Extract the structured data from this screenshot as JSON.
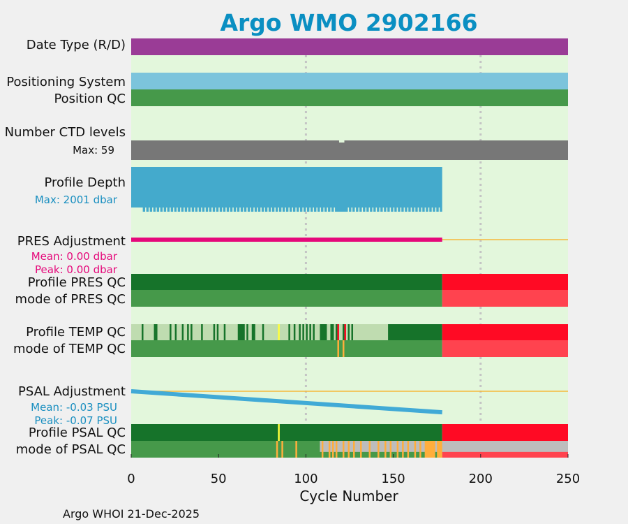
{
  "title": "Argo WMO 2902166",
  "footer": "Argo WHOI 21-Dec-2025",
  "colors": {
    "title": "#0a8fc2",
    "plot_bg": "#e3f7dc",
    "date_type": "#9a3c96",
    "positioning": "#7cc4dc",
    "qc_good": "#46994a",
    "qc_dark_good": "#16732a",
    "qc_light_good": "#bfdcb0",
    "qc_bad": "#ff0a24",
    "qc_bad_light": "#ff434f",
    "qc_probably_bad": "#ffae3c",
    "qc_flag_yellow": "#ffff3c",
    "qc_no_data": "#bdbdbd",
    "ctd": "#777777",
    "depth": "#44aacc",
    "pres_adj": "#e5087a",
    "psal_adj": "#41aad6",
    "zero_line": "#f6b93b",
    "mean_peak_pres": "#e5087a",
    "mean_peak_psal": "#1a8fc0"
  },
  "chart_data": {
    "type": "heatmap",
    "xlabel": "Cycle Number",
    "xlim": [
      0,
      250
    ],
    "xticks": [
      "0",
      "50",
      "100",
      "150",
      "200",
      "250"
    ],
    "xtick_values": [
      0,
      50,
      100,
      150,
      200,
      250
    ],
    "gridlines_at": [
      100,
      200
    ],
    "last_cycle": 178,
    "rows": {
      "date_type": {
        "label": "Date Type (R/D)",
        "segments": [
          {
            "from": 0,
            "to": 250,
            "color": "date_type"
          }
        ]
      },
      "positioning": {
        "label": "Positioning System",
        "segments": [
          {
            "from": 0,
            "to": 250,
            "color": "positioning"
          }
        ]
      },
      "position_qc": {
        "label": "Position QC",
        "segments": [
          {
            "from": 0,
            "to": 250,
            "color": "qc_good"
          }
        ]
      },
      "ctd_levels": {
        "label": "Number CTD levels",
        "max_label": "Max: 59",
        "max": 59,
        "typical": 57,
        "from": 0,
        "to": 250
      },
      "profile_depth": {
        "label": "Profile Depth",
        "max_label": "Max: 2001 dbar",
        "max_dbar": 2001,
        "from": 0,
        "to": 178,
        "typical_dbar": 2001,
        "dips": [
          {
            "cycle": 5,
            "dbar": 1800
          },
          {
            "cycle": 12,
            "dbar": 1840
          },
          {
            "cycle": 20,
            "dbar": 1830
          },
          {
            "cycle": 33,
            "dbar": 1840
          },
          {
            "cycle": 46,
            "dbar": 1840
          },
          {
            "cycle": 58,
            "dbar": 1840
          },
          {
            "cycle": 74,
            "dbar": 1700
          },
          {
            "cycle": 88,
            "dbar": 1840
          },
          {
            "cycle": 102,
            "dbar": 1840
          },
          {
            "cycle": 116,
            "dbar": 1840
          },
          {
            "cycle": 118,
            "dbar": 1600
          },
          {
            "cycle": 120,
            "dbar": 1500
          },
          {
            "cycle": 122,
            "dbar": 1650
          },
          {
            "cycle": 134,
            "dbar": 1840
          },
          {
            "cycle": 150,
            "dbar": 1840
          },
          {
            "cycle": 165,
            "dbar": 1840
          },
          {
            "cycle": 175,
            "dbar": 1840
          }
        ]
      },
      "pres_adjustment": {
        "label": "PRES Adjustment",
        "mean_label": "Mean: 0.00 dbar",
        "peak_label": "Peak: 0.00 dbar",
        "series": [
          {
            "cycle": 0,
            "value": 0.0
          },
          {
            "cycle": 178,
            "value": 0.0
          }
        ]
      },
      "profile_pres_qc": {
        "label": "Profile PRES QC",
        "segments": [
          {
            "from": 0,
            "to": 178,
            "color": "qc_dark_good"
          },
          {
            "from": 178,
            "to": 250,
            "color": "qc_bad"
          }
        ]
      },
      "mode_pres_qc": {
        "label": "mode of PRES QC",
        "segments": [
          {
            "from": 0,
            "to": 178,
            "color": "qc_good"
          },
          {
            "from": 178,
            "to": 250,
            "color": "qc_bad_light"
          }
        ]
      },
      "profile_temp_qc": {
        "label": "Profile TEMP QC",
        "segments": [
          {
            "from": 0,
            "to": 147,
            "color": "qc_light_good"
          },
          {
            "from": 147,
            "to": 178,
            "color": "qc_dark_good"
          },
          {
            "from": 178,
            "to": 250,
            "color": "qc_bad"
          }
        ],
        "marks": [
          {
            "at": 6,
            "color": "qc_dark_good"
          },
          {
            "at": 13,
            "color": "qc_dark_good"
          },
          {
            "at": 14,
            "color": "qc_dark_good"
          },
          {
            "at": 22,
            "color": "qc_dark_good"
          },
          {
            "at": 25,
            "color": "qc_dark_good"
          },
          {
            "at": 29,
            "color": "qc_dark_good"
          },
          {
            "at": 32,
            "color": "qc_dark_good"
          },
          {
            "at": 34,
            "color": "qc_dark_good"
          },
          {
            "at": 40,
            "color": "qc_dark_good"
          },
          {
            "at": 47,
            "color": "qc_dark_good"
          },
          {
            "at": 49,
            "color": "qc_dark_good"
          },
          {
            "at": 53,
            "color": "qc_dark_good"
          },
          {
            "at": 61,
            "color": "qc_dark_good",
            "w": 4
          },
          {
            "at": 66,
            "color": "qc_dark_good"
          },
          {
            "at": 69,
            "color": "qc_dark_good",
            "w": 2
          },
          {
            "at": 75,
            "color": "qc_dark_good"
          },
          {
            "at": 84,
            "color": "qc_flag_yellow"
          },
          {
            "at": 90,
            "color": "qc_dark_good"
          },
          {
            "at": 93,
            "color": "qc_dark_good"
          },
          {
            "at": 96,
            "color": "qc_dark_good"
          },
          {
            "at": 98,
            "color": "qc_dark_good"
          },
          {
            "at": 100,
            "color": "qc_dark_good"
          },
          {
            "at": 102,
            "color": "qc_dark_good"
          },
          {
            "at": 104,
            "color": "qc_dark_good"
          },
          {
            "at": 108,
            "color": "qc_dark_good",
            "w": 4
          },
          {
            "at": 114,
            "color": "qc_dark_good",
            "w": 2
          },
          {
            "at": 117,
            "color": "qc_dark_good"
          },
          {
            "at": 118,
            "color": "qc_bad"
          },
          {
            "at": 121,
            "color": "qc_dark_good"
          },
          {
            "at": 122,
            "color": "qc_bad"
          },
          {
            "at": 124,
            "color": "qc_dark_good"
          },
          {
            "at": 126,
            "color": "qc_dark_good"
          }
        ]
      },
      "mode_temp_qc": {
        "label": "mode of TEMP QC",
        "segments": [
          {
            "from": 0,
            "to": 178,
            "color": "qc_good"
          },
          {
            "from": 178,
            "to": 250,
            "color": "qc_bad_light"
          }
        ],
        "marks": [
          {
            "at": 118,
            "color": "qc_probably_bad"
          },
          {
            "at": 121,
            "color": "qc_probably_bad"
          }
        ]
      },
      "psal_adjustment": {
        "label": "PSAL Adjustment",
        "mean_label": "Mean: -0.03 PSU",
        "peak_label": "Peak: -0.07 PSU",
        "series": [
          {
            "cycle": 0,
            "value": 0.0
          },
          {
            "cycle": 178,
            "value": -0.07
          }
        ]
      },
      "profile_psal_qc": {
        "label": "Profile PSAL QC",
        "segments": [
          {
            "from": 0,
            "to": 178,
            "color": "qc_dark_good"
          },
          {
            "from": 178,
            "to": 250,
            "color": "qc_bad"
          }
        ],
        "marks": [
          {
            "at": 84,
            "color": "qc_flag_yellow"
          }
        ]
      },
      "mode_psal_qc": {
        "label": "mode of PSAL QC",
        "segments": [
          {
            "from": 0,
            "to": 178,
            "color": "qc_good"
          },
          {
            "from": 178,
            "to": 250,
            "color": "qc_bad_light"
          },
          {
            "from": 108,
            "to": 250,
            "color": "qc_no_data",
            "half": "top"
          }
        ],
        "marks": [
          {
            "at": 83,
            "color": "qc_probably_bad"
          },
          {
            "at": 86,
            "color": "qc_probably_bad"
          },
          {
            "at": 94,
            "color": "qc_probably_bad"
          },
          {
            "at": 109,
            "color": "qc_probably_bad"
          },
          {
            "at": 113,
            "color": "qc_probably_bad"
          },
          {
            "at": 115,
            "color": "qc_probably_bad"
          },
          {
            "at": 117,
            "color": "qc_probably_bad"
          },
          {
            "at": 121,
            "color": "qc_probably_bad"
          },
          {
            "at": 124,
            "color": "qc_probably_bad"
          },
          {
            "at": 127,
            "color": "qc_probably_bad"
          },
          {
            "at": 131,
            "color": "qc_probably_bad"
          },
          {
            "at": 136,
            "color": "qc_probably_bad"
          },
          {
            "at": 141,
            "color": "qc_probably_bad"
          },
          {
            "at": 145,
            "color": "qc_probably_bad"
          },
          {
            "at": 148,
            "color": "qc_probably_bad"
          },
          {
            "at": 152,
            "color": "qc_probably_bad"
          },
          {
            "at": 155,
            "color": "qc_probably_bad"
          },
          {
            "at": 158,
            "color": "qc_probably_bad"
          },
          {
            "at": 162,
            "color": "qc_probably_bad"
          },
          {
            "at": 165,
            "color": "qc_probably_bad"
          },
          {
            "at": 168,
            "color": "qc_probably_bad",
            "w": 6
          },
          {
            "at": 175,
            "color": "qc_probably_bad",
            "w": 3
          }
        ]
      }
    }
  }
}
